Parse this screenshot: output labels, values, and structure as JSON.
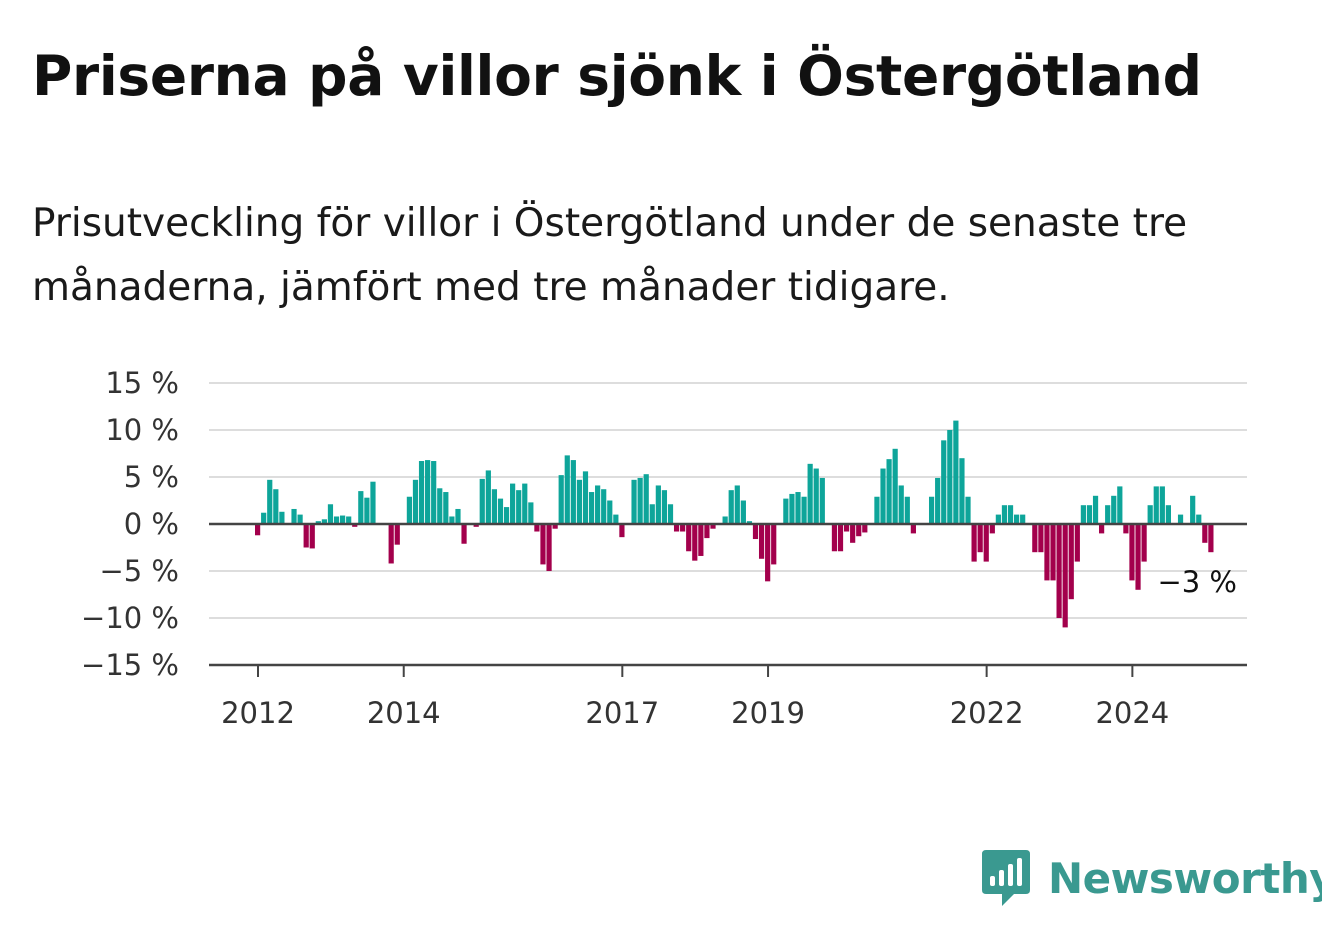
{
  "title": "Priserna på villor sjönk i Östergötland",
  "subtitle": "Prisutveckling för villor i Östergötland under de senaste tre månaderna, jämfört med tre månader tidigare.",
  "brand": {
    "name": "Newsworthy",
    "icon": "newsworthy-bar-chart-icon",
    "color": "#3a9990"
  },
  "colors": {
    "positive": "#0ea59a",
    "negative": "#a3004c",
    "grid": "#dddddd",
    "axis": "#444444"
  },
  "chart_data": {
    "type": "bar",
    "ylim": [
      -15,
      15
    ],
    "y_ticks": [
      15,
      10,
      5,
      0,
      -5,
      -10,
      -15
    ],
    "y_tick_labels": [
      "15 %",
      "10 %",
      "5 %",
      "0 %",
      "−5 %",
      "−10 %",
      "−15 %"
    ],
    "x_ticks": [
      "2012",
      "2014",
      "2017",
      "2019",
      "2022",
      "2024"
    ],
    "grid": true,
    "end_label": "−3 %",
    "series": [
      {
        "values": [
          -1.2,
          1.2,
          4.7,
          3.7,
          1.3,
          0,
          1.6,
          1.0,
          -2.5,
          -2.6,
          0.3,
          0.5,
          2.1,
          0.8,
          0.9,
          0.8,
          -0.3,
          3.5,
          2.8,
          4.5,
          0,
          0,
          -4.2,
          -2.2,
          0,
          2.9,
          4.7,
          6.7,
          6.8,
          6.7,
          3.8,
          3.4,
          0.8,
          1.6,
          -2.1,
          0,
          -0.3,
          4.8,
          5.7,
          3.7,
          2.7,
          1.8,
          4.3,
          3.6,
          4.3,
          2.3,
          -0.8,
          -4.3,
          -5.0,
          -0.5,
          5.2,
          7.3,
          6.8,
          4.7,
          5.6,
          3.4,
          4.1,
          3.7,
          2.5,
          1.0,
          -1.4,
          0,
          4.7,
          4.9,
          5.3,
          2.1,
          4.1,
          3.6,
          2.1,
          -0.8,
          -0.8,
          -2.9,
          -3.9,
          -3.4,
          -1.5,
          -0.5,
          0,
          0.8,
          3.6,
          4.1,
          2.5,
          0.3,
          -1.6,
          -3.7,
          -6.1,
          -4.3,
          0,
          2.7,
          3.2,
          3.4,
          2.9,
          6.4,
          5.9,
          4.9,
          0,
          -2.9,
          -2.9,
          -0.8,
          -2.0,
          -1.3,
          -0.9,
          0,
          2.9,
          5.9,
          6.9,
          8.0,
          4.1,
          2.9,
          -1.0,
          0,
          0,
          2.9,
          4.9,
          8.9,
          10.0,
          11.0,
          7.0,
          2.9,
          -4.0,
          -3.0,
          -4.0,
          -1.0,
          1.0,
          2.0,
          2.0,
          1.0,
          1.0,
          0,
          -3.0,
          -3.0,
          -6.0,
          -6.0,
          -10.0,
          -11.0,
          -8.0,
          -4.0,
          2.0,
          2.0,
          3.0,
          -1.0,
          2.0,
          3.0,
          4.0,
          -1.0,
          -6.0,
          -7.0,
          -4.0,
          2.0,
          4.0,
          4.0,
          2.0,
          0,
          1.0,
          0,
          3.0,
          1.0,
          -2.0,
          -3.0
        ]
      }
    ]
  }
}
